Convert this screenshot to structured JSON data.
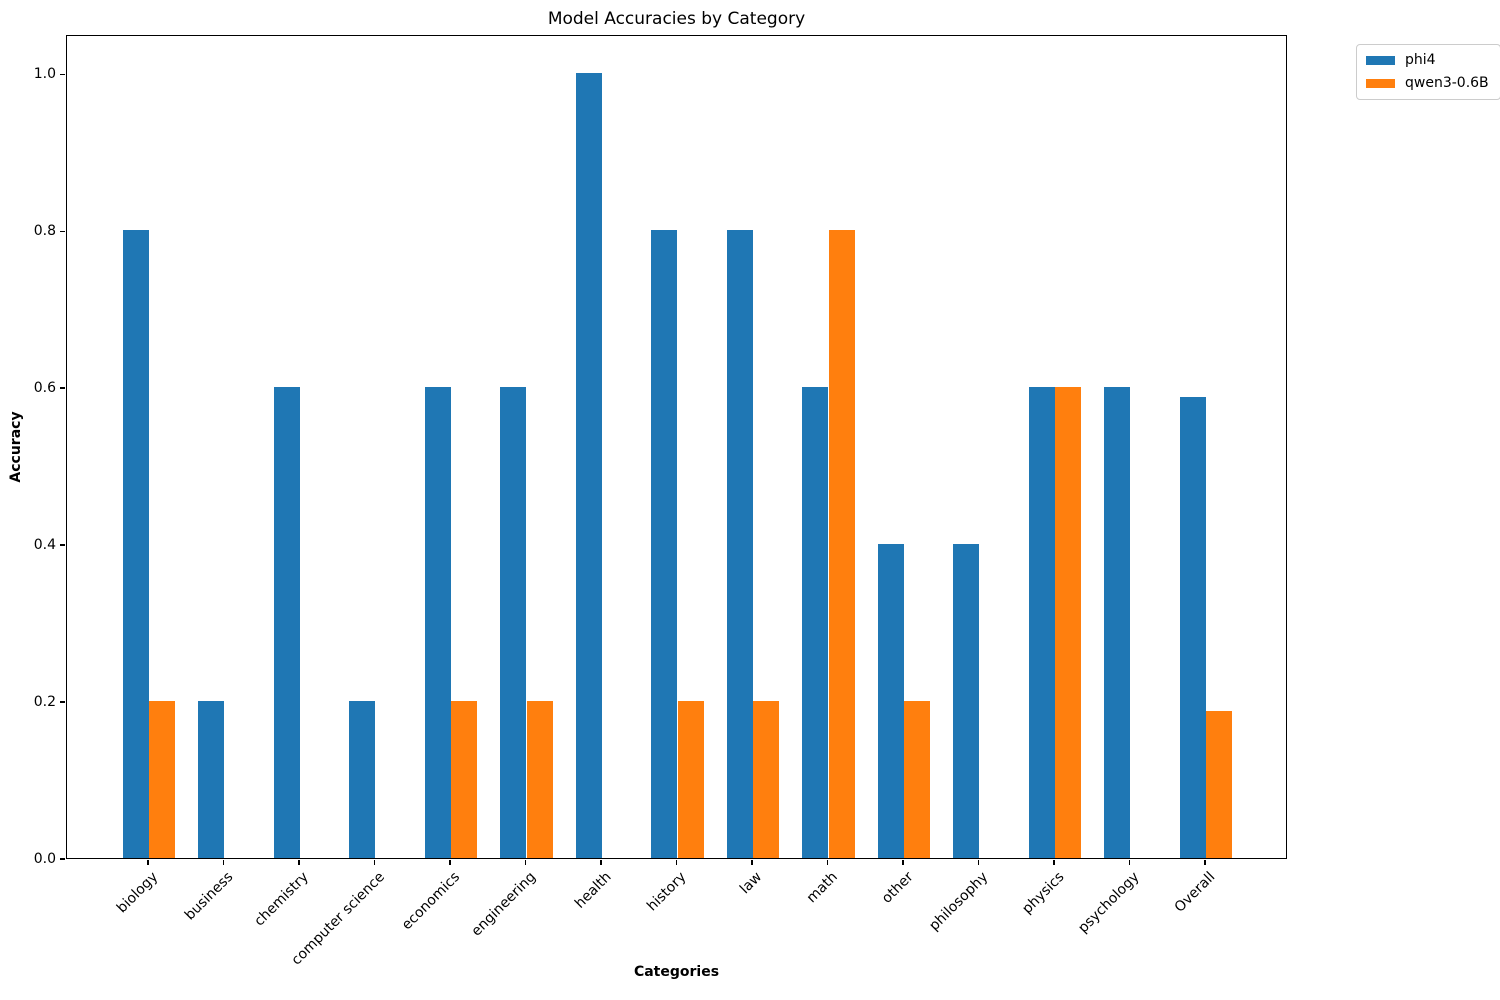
{
  "chart_data": {
    "type": "bar",
    "title": "Model Accuracies by Category",
    "xlabel": "Categories",
    "ylabel": "Accuracy",
    "categories": [
      "biology",
      "business",
      "chemistry",
      "computer science",
      "economics",
      "engineering",
      "health",
      "history",
      "law",
      "math",
      "other",
      "philosophy",
      "physics",
      "psychology",
      "Overall"
    ],
    "series": [
      {
        "name": "phi4",
        "color": "#1f77b4",
        "values": [
          0.8,
          0.2,
          0.6,
          0.2,
          0.6,
          0.6,
          1.0,
          0.8,
          0.8,
          0.6,
          0.4,
          0.4,
          0.6,
          0.6,
          0.587
        ]
      },
      {
        "name": "qwen3-0.6B",
        "color": "#ff7f0e",
        "values": [
          0.2,
          0.0,
          0.0,
          0.0,
          0.2,
          0.2,
          0.0,
          0.2,
          0.2,
          0.8,
          0.2,
          0.0,
          0.6,
          0.0,
          0.187
        ]
      }
    ],
    "ylim": [
      0,
      1.05
    ],
    "yticks": [
      0.0,
      0.2,
      0.4,
      0.6,
      0.8,
      1.0
    ],
    "ytick_labels": [
      "0.0",
      "0.2",
      "0.4",
      "0.6",
      "0.8",
      "1.0"
    ],
    "bar_width_units": 0.35,
    "grid": false,
    "legend_position": "upper-right-outside",
    "xtick_rotation_deg": 45
  }
}
